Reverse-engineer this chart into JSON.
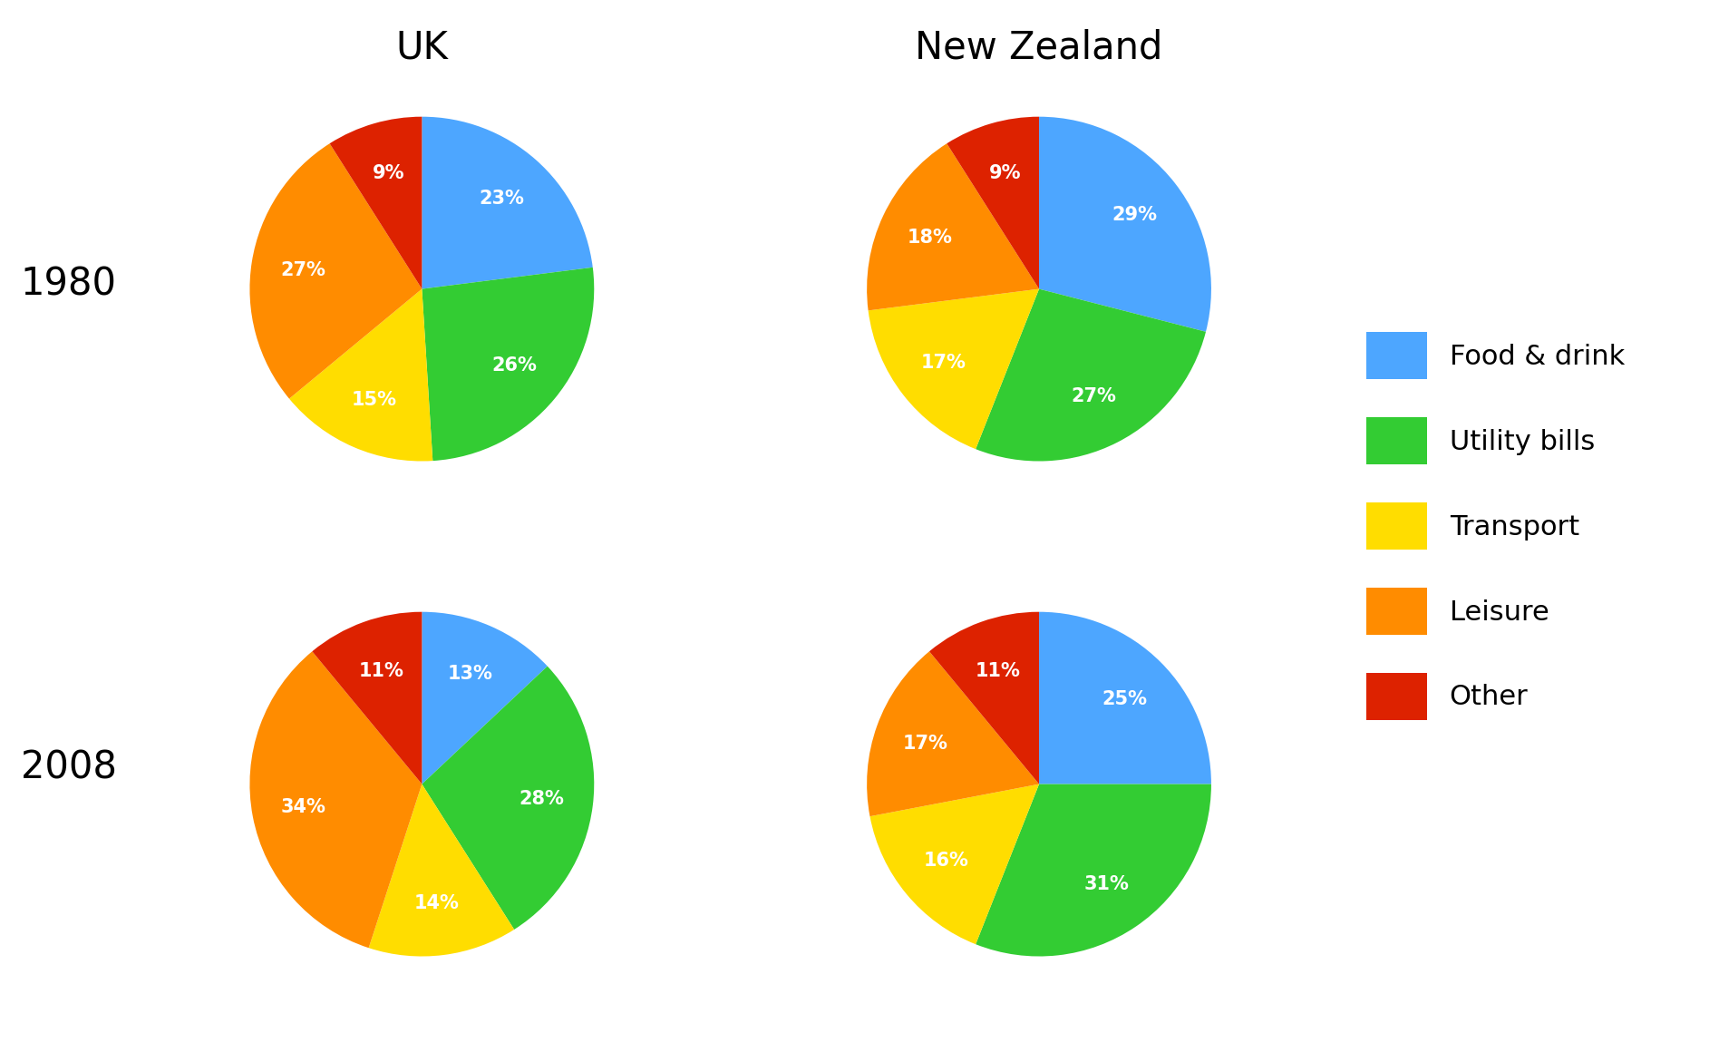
{
  "title_uk": "UK",
  "title_nz": "New Zealand",
  "row_labels": [
    "1980",
    "2008"
  ],
  "categories": [
    "Food & drink",
    "Utility bills",
    "Transport",
    "Leisure",
    "Other"
  ],
  "colors": [
    "#4da6ff",
    "#33cc33",
    "#ffdd00",
    "#ff8c00",
    "#dd2200"
  ],
  "uk_1980": [
    23,
    26,
    15,
    27,
    9
  ],
  "nz_1980": [
    29,
    27,
    17,
    18,
    9
  ],
  "uk_2008": [
    13,
    28,
    14,
    34,
    11
  ],
  "nz_2008": [
    25,
    31,
    16,
    17,
    11
  ],
  "startangle_uk_1980": 90,
  "startangle_nz_1980": 90,
  "startangle_uk_2008": 90,
  "startangle_nz_2008": 90,
  "bg_color": "#ffffff",
  "label_color": "#ffffff",
  "label_fontsize": 15,
  "title_fontsize": 30,
  "row_label_fontsize": 30,
  "legend_fontsize": 22
}
